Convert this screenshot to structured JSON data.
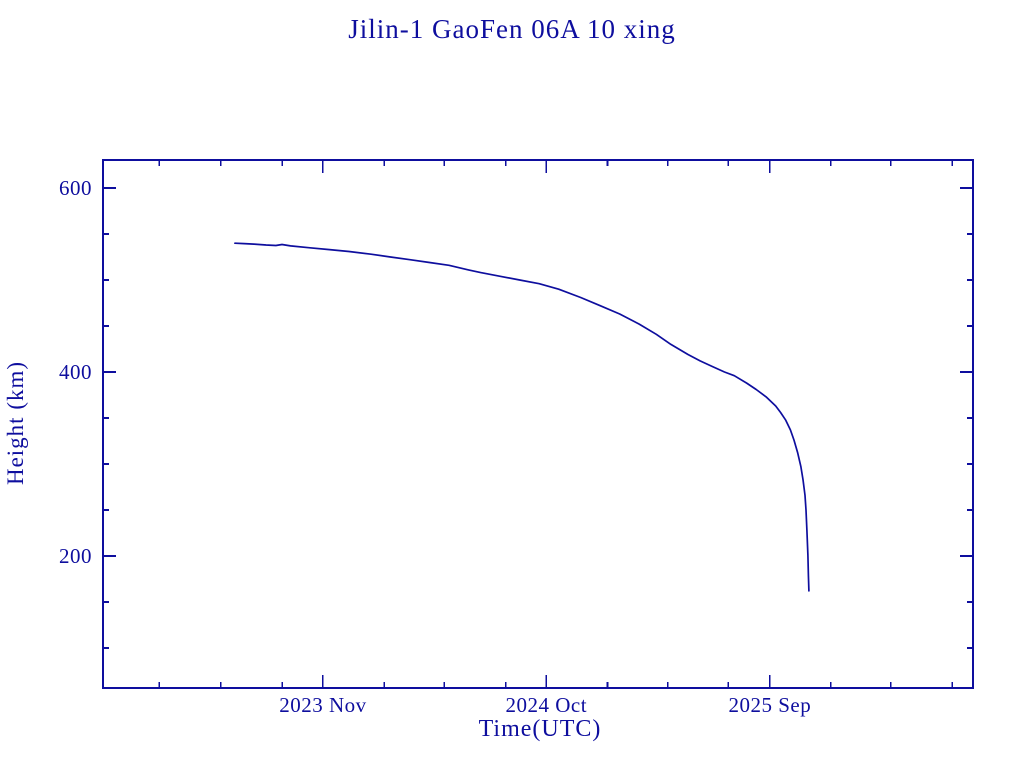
{
  "colors": {
    "ink": "#0e0e9e",
    "background": "#ffffff"
  },
  "chart_data": {
    "type": "line",
    "title": "Jilin-1 GaoFen 06A 10 xing",
    "xlabel": "Time(UTC)",
    "ylabel": "Height (km)",
    "grid": false,
    "legend": "none",
    "x_axis": {
      "units": "decimal_year",
      "range": [
        2022.931,
        2026.499
      ],
      "ticks_major": [
        {
          "value": 2023.833,
          "label": "2023 Nov"
        },
        {
          "value": 2024.749,
          "label": "2024 Oct"
        },
        {
          "value": 2025.666,
          "label": "2025 Sep"
        }
      ],
      "ticks_minor": [
        2023.162,
        2023.414,
        2023.666,
        2024.085,
        2024.331,
        2024.582,
        2025.0,
        2025.247,
        2025.496,
        2025.915,
        2026.162,
        2026.414
      ]
    },
    "y_axis": {
      "units": "km",
      "range": [
        56.5,
        630.4
      ],
      "ticks_major": [
        {
          "value": 600,
          "label": "600"
        },
        {
          "value": 400,
          "label": "400"
        },
        {
          "value": 200,
          "label": "200"
        }
      ],
      "ticks_minor": [
        550,
        500,
        450,
        350,
        300,
        250,
        150,
        100
      ]
    },
    "series": [
      {
        "name": "orbital-height",
        "points": [
          [
            2023.472,
            540
          ],
          [
            2023.51,
            539.5
          ],
          [
            2023.55,
            539
          ],
          [
            2023.6,
            538
          ],
          [
            2023.64,
            537.5
          ],
          [
            2023.665,
            538.5
          ],
          [
            2023.7,
            537
          ],
          [
            2023.78,
            535
          ],
          [
            2023.86,
            533
          ],
          [
            2023.94,
            531
          ],
          [
            2024.03,
            528
          ],
          [
            2024.11,
            525
          ],
          [
            2024.19,
            522
          ],
          [
            2024.27,
            519
          ],
          [
            2024.35,
            516
          ],
          [
            2024.43,
            511
          ],
          [
            2024.48,
            508
          ],
          [
            2024.56,
            504
          ],
          [
            2024.64,
            500
          ],
          [
            2024.72,
            496
          ],
          [
            2024.8,
            490
          ],
          [
            2024.89,
            481
          ],
          [
            2024.97,
            472
          ],
          [
            2025.05,
            463
          ],
          [
            2025.13,
            452
          ],
          [
            2025.2,
            441
          ],
          [
            2025.26,
            430
          ],
          [
            2025.33,
            419
          ],
          [
            2025.38,
            412
          ],
          [
            2025.43,
            406
          ],
          [
            2025.48,
            400
          ],
          [
            2025.52,
            396
          ],
          [
            2025.57,
            388
          ],
          [
            2025.61,
            381
          ],
          [
            2025.65,
            373
          ],
          [
            2025.69,
            363
          ],
          [
            2025.71,
            356
          ],
          [
            2025.73,
            348
          ],
          [
            2025.75,
            337
          ],
          [
            2025.765,
            326
          ],
          [
            2025.78,
            312
          ],
          [
            2025.793,
            297
          ],
          [
            2025.802,
            283
          ],
          [
            2025.81,
            266
          ],
          [
            2025.814,
            250
          ],
          [
            2025.818,
            228
          ],
          [
            2025.822,
            201
          ],
          [
            2025.824,
            179
          ],
          [
            2025.826,
            162
          ]
        ]
      }
    ]
  }
}
